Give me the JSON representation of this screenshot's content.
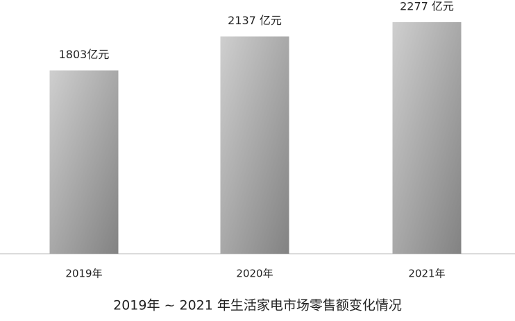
{
  "chart_data": {
    "type": "bar",
    "title": "2019年 ~ 2021 年生活家电市场零售额变化情况",
    "categories": [
      "2019年",
      "2020年",
      "2021年"
    ],
    "values": [
      1803,
      2137,
      2277
    ],
    "value_labels": [
      "1803亿元",
      "2137 亿元",
      "2277 亿元"
    ],
    "color": "#9a9a9a"
  }
}
